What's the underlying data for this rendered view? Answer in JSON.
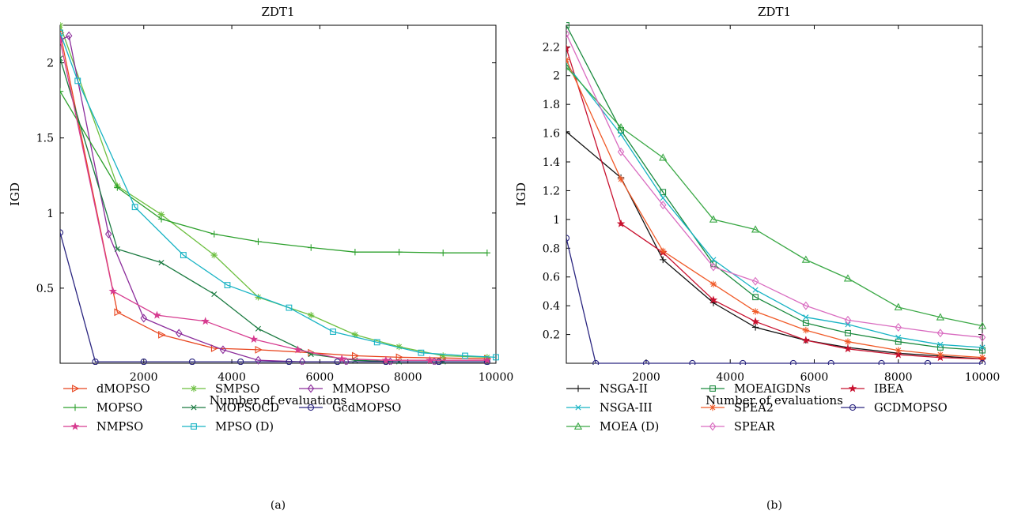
{
  "chart_data": [
    {
      "type": "line",
      "panel_label": "(a)",
      "title": "ZDT1",
      "xlabel": "Number of evaluations",
      "ylabel": "IGD",
      "xlim": [
        100,
        10000
      ],
      "ylim": [
        0,
        2.25
      ],
      "xticks": [
        2000,
        4000,
        6000,
        8000,
        10000
      ],
      "yticks": [
        0.5,
        1,
        1.5,
        2
      ],
      "ytick_labels": [
        "0.5",
        "1",
        "1.5",
        "2"
      ],
      "grid": false,
      "legend_position": "bottom",
      "series": [
        {
          "name": "dMOPSO",
          "color": "#e8451e",
          "marker": "triangle-right",
          "x": [
            100,
            1400,
            2400,
            3600,
            4600,
            5800,
            6800,
            7800,
            8800,
            9800
          ],
          "y": [
            2.2,
            0.34,
            0.19,
            0.1,
            0.09,
            0.07,
            0.05,
            0.04,
            0.035,
            0.03
          ]
        },
        {
          "name": "SMPSO",
          "color": "#6cbf3f",
          "marker": "asterisk",
          "x": [
            100,
            1400,
            2400,
            3600,
            4600,
            5800,
            6800,
            7800,
            8800,
            9800
          ],
          "y": [
            2.25,
            1.18,
            0.99,
            0.72,
            0.44,
            0.32,
            0.19,
            0.11,
            0.05,
            0.04
          ]
        },
        {
          "name": "MMOPSO",
          "color": "#8b2c9b",
          "marker": "diamond",
          "x": [
            100,
            300,
            1200,
            2000,
            2800,
            3800,
            4600,
            5600,
            6600,
            7600,
            8600,
            9800
          ],
          "y": [
            2.15,
            2.18,
            0.86,
            0.3,
            0.2,
            0.09,
            0.02,
            0.01,
            0.01,
            0.01,
            0.01,
            0.01
          ]
        },
        {
          "name": "MOPSO",
          "color": "#2ca02c",
          "marker": "plus",
          "x": [
            100,
            1400,
            2400,
            3600,
            4600,
            5800,
            6800,
            7800,
            8800,
            9800
          ],
          "y": [
            1.81,
            1.17,
            0.96,
            0.86,
            0.81,
            0.77,
            0.74,
            0.74,
            0.735,
            0.735
          ]
        },
        {
          "name": "MOPSOCD",
          "color": "#1a7a40",
          "marker": "x",
          "x": [
            100,
            1400,
            2400,
            3600,
            4600,
            5800,
            6800,
            7800,
            8800,
            9800
          ],
          "y": [
            2.03,
            0.76,
            0.67,
            0.46,
            0.23,
            0.06,
            0.02,
            0.01,
            0.01,
            0.01
          ]
        },
        {
          "name": "GcdMOPSO",
          "color": "#2b2680",
          "marker": "circle",
          "x": [
            100,
            900,
            2000,
            3100,
            4200,
            5300,
            6400,
            7500,
            8700,
            9800
          ],
          "y": [
            0.87,
            0.01,
            0.01,
            0.01,
            0.01,
            0.01,
            0.01,
            0.01,
            0.01,
            0.01
          ]
        },
        {
          "name": "NMPSO",
          "color": "#d63b8f",
          "marker": "star",
          "x": [
            100,
            1300,
            2300,
            3400,
            4500,
            5500,
            6500,
            7500,
            8500,
            9800
          ],
          "y": [
            2.15,
            0.48,
            0.32,
            0.28,
            0.16,
            0.09,
            0.03,
            0.02,
            0.02,
            0.02
          ]
        },
        {
          "name": "MPSO (D)",
          "color": "#17b3c4",
          "marker": "square",
          "x": [
            100,
            500,
            1800,
            2900,
            3900,
            5300,
            6300,
            7300,
            8300,
            9300,
            10000
          ],
          "y": [
            2.2,
            1.88,
            1.04,
            0.72,
            0.52,
            0.37,
            0.21,
            0.14,
            0.07,
            0.05,
            0.04
          ]
        }
      ],
      "legend_order": [
        "dMOPSO",
        "SMPSO",
        "MMOPSO",
        "MOPSO",
        "MOPSOCD",
        "GcdMOPSO",
        "NMPSO",
        "MPSO (D)"
      ]
    },
    {
      "type": "line",
      "panel_label": "(b)",
      "title": "ZDT1",
      "xlabel": "Number of evaluations",
      "ylabel": "IGD",
      "xlim": [
        100,
        10000
      ],
      "ylim": [
        0,
        2.35
      ],
      "xticks": [
        2000,
        4000,
        6000,
        8000,
        10000
      ],
      "yticks": [
        0.2,
        0.4,
        0.6,
        0.8,
        1,
        1.2,
        1.4,
        1.6,
        1.8,
        2,
        2.2
      ],
      "ytick_labels": [
        "0.2",
        "0.4",
        "0.6",
        "0.8",
        "1",
        "1.2",
        "1.4",
        "1.6",
        "1.8",
        "2",
        "2.2"
      ],
      "grid": false,
      "legend_position": "bottom",
      "series": [
        {
          "name": "NSGA-II",
          "color": "#111111",
          "marker": "plus",
          "x": [
            100,
            1400,
            2400,
            3600,
            4600,
            5800,
            6800,
            8000,
            9000,
            10000
          ],
          "y": [
            1.61,
            1.29,
            0.72,
            0.42,
            0.25,
            0.16,
            0.11,
            0.07,
            0.05,
            0.03
          ]
        },
        {
          "name": "MOEAIGDNs",
          "color": "#1b8a3e",
          "marker": "square",
          "x": [
            100,
            1400,
            2400,
            3600,
            4600,
            5800,
            6800,
            8000,
            9000,
            10000
          ],
          "y": [
            2.35,
            1.62,
            1.19,
            0.69,
            0.46,
            0.28,
            0.21,
            0.15,
            0.11,
            0.09
          ]
        },
        {
          "name": "IBEA",
          "color": "#c8102e",
          "marker": "star",
          "x": [
            100,
            1400,
            2400,
            3600,
            4600,
            5800,
            6800,
            8000,
            9000,
            10000
          ],
          "y": [
            2.19,
            0.97,
            0.77,
            0.44,
            0.29,
            0.16,
            0.1,
            0.06,
            0.04,
            0.03
          ]
        },
        {
          "name": "NSGA-III",
          "color": "#17b3c4",
          "marker": "x",
          "x": [
            100,
            1400,
            2400,
            3600,
            4600,
            5800,
            6800,
            8000,
            9000,
            10000
          ],
          "y": [
            2.08,
            1.59,
            1.15,
            0.72,
            0.51,
            0.32,
            0.27,
            0.18,
            0.13,
            0.11
          ]
        },
        {
          "name": "SPEA2",
          "color": "#f05a28",
          "marker": "asterisk",
          "x": [
            100,
            1400,
            2400,
            3600,
            4600,
            5800,
            6800,
            8000,
            9000,
            10000
          ],
          "y": [
            2.11,
            1.28,
            0.78,
            0.55,
            0.36,
            0.23,
            0.15,
            0.09,
            0.06,
            0.04
          ]
        },
        {
          "name": "GCDMOPSO",
          "color": "#2b2680",
          "marker": "circle",
          "x": [
            100,
            800,
            2000,
            3100,
            4300,
            5500,
            6400,
            7600,
            8700,
            10000
          ],
          "y": [
            0.87,
            0.0,
            0.0,
            0.0,
            0.0,
            0.0,
            0.0,
            0.0,
            0.0,
            0.0
          ]
        },
        {
          "name": "MOEA (D)",
          "color": "#3aa845",
          "marker": "triangle-up",
          "x": [
            100,
            1400,
            2400,
            3600,
            4600,
            5800,
            6800,
            8000,
            9000,
            10000
          ],
          "y": [
            2.06,
            1.64,
            1.43,
            1.0,
            0.93,
            0.72,
            0.59,
            0.39,
            0.32,
            0.26
          ]
        },
        {
          "name": "SPEAR",
          "color": "#d96cc0",
          "marker": "diamond",
          "x": [
            100,
            1400,
            2400,
            3600,
            4600,
            5800,
            6800,
            8000,
            9000,
            10000
          ],
          "y": [
            2.29,
            1.47,
            1.1,
            0.67,
            0.57,
            0.4,
            0.3,
            0.25,
            0.21,
            0.18
          ]
        }
      ],
      "legend_order": [
        "NSGA-II",
        "MOEAIGDNs",
        "IBEA",
        "NSGA-III",
        "SPEA2",
        "GCDMOPSO",
        "MOEA (D)",
        "SPEAR"
      ]
    }
  ]
}
